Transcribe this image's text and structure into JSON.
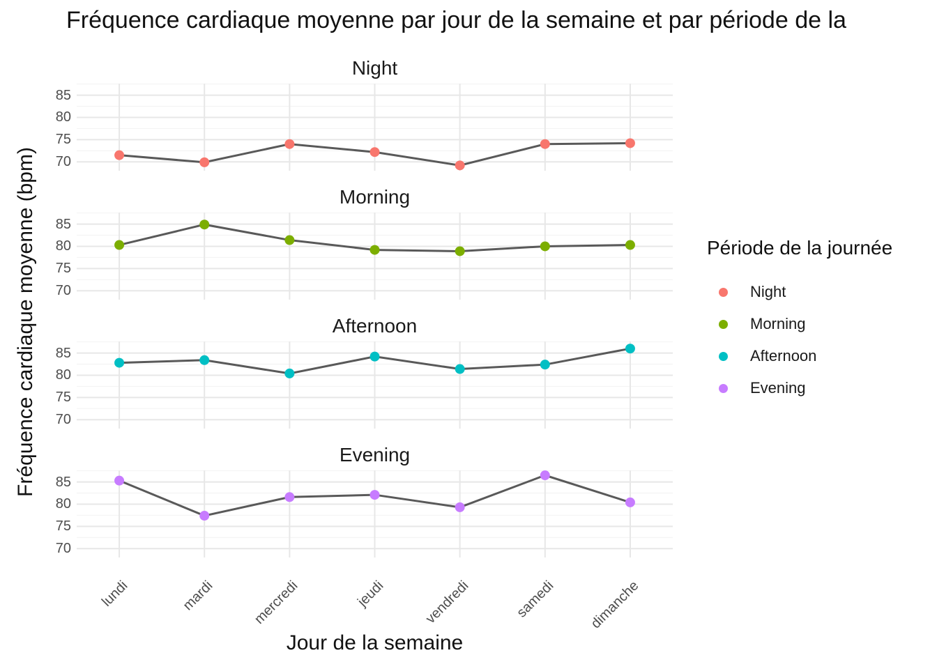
{
  "title": "Fréquence cardiaque moyenne par jour de la semaine et par période de la",
  "axes": {
    "x_title": "Jour de la semaine",
    "y_title": "Fréquence cardiaque moyenne (bpm)",
    "y_tick_labels": [
      "85",
      "80",
      "75",
      "70"
    ]
  },
  "legend": {
    "title": "Période de la journée",
    "items": [
      {
        "label": "Night",
        "color": "#F8766D"
      },
      {
        "label": "Morning",
        "color": "#7CAE00"
      },
      {
        "label": "Afternoon",
        "color": "#00BFC4"
      },
      {
        "label": "Evening",
        "color": "#C77CFF"
      }
    ]
  },
  "chart_data": {
    "type": "line",
    "faceted_by": "Période de la journée",
    "categories": [
      "lundi",
      "mardi",
      "mercredi",
      "jeudi",
      "vendredi",
      "samedi",
      "dimanche"
    ],
    "series": [
      {
        "name": "Night",
        "color": "#F8766D",
        "values": [
          71.5,
          69.9,
          74.0,
          72.2,
          69.2,
          74.0,
          74.2
        ]
      },
      {
        "name": "Morning",
        "color": "#7CAE00",
        "values": [
          80.3,
          84.9,
          81.4,
          79.2,
          78.9,
          80.0,
          80.3
        ]
      },
      {
        "name": "Afternoon",
        "color": "#00BFC4",
        "values": [
          82.8,
          83.4,
          80.4,
          84.2,
          81.4,
          82.4,
          86.0
        ]
      },
      {
        "name": "Evening",
        "color": "#C77CFF",
        "values": [
          85.3,
          77.4,
          81.6,
          82.1,
          79.3,
          86.5,
          80.4
        ]
      }
    ],
    "title": "Fréquence cardiaque moyenne par jour de la semaine et par période de la",
    "xlabel": "Jour de la semaine",
    "ylabel": "Fréquence cardiaque moyenne (bpm)",
    "ylim": [
      68.0,
      87.6
    ],
    "y_major_gridlines": [
      70,
      75,
      80,
      85
    ],
    "y_minor_gridlines": [
      72.5,
      77.5,
      82.5,
      87.5
    ],
    "grid": true,
    "line_color": "#595959",
    "major_grid_color": "#e7e7e7",
    "minor_grid_color": "#f2f2f2",
    "legend_position": "right"
  }
}
